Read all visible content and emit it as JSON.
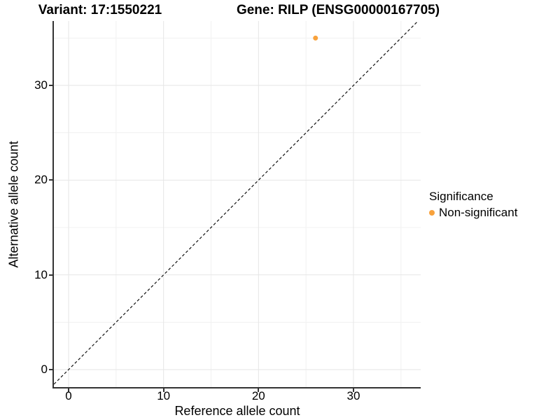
{
  "header": {
    "variant_title": "Variant: 17:1550221",
    "gene_title": "Gene: RILP (ENSG00000167705)"
  },
  "chart_data": {
    "type": "scatter",
    "xlabel": "Reference allele count",
    "ylabel": "Alternative allele count",
    "x_major_ticks": [
      0,
      10,
      20,
      30
    ],
    "y_major_ticks": [
      0,
      10,
      20,
      30
    ],
    "x_minor_gridlines": [
      5,
      15,
      25,
      35
    ],
    "y_minor_gridlines": [
      5,
      15,
      25,
      35
    ],
    "xlim": [
      -1.8,
      37.1
    ],
    "ylim": [
      -1.85,
      36.8
    ],
    "grid": true,
    "points": [
      {
        "x": 26,
        "y": 35,
        "significance": "Non-significant"
      }
    ],
    "identity_line": {
      "slope": 1,
      "intercept": 0,
      "style": "dashed"
    },
    "legend": {
      "title": "Significance",
      "position": "right",
      "entries": [
        {
          "label": "Non-significant",
          "color": "#F8A23C"
        }
      ]
    }
  },
  "colors": {
    "background": "#FFFFFF",
    "axis_line": "#333333",
    "major_grid": "#E6E6E6",
    "minor_grid": "#F1F1F1",
    "point": "#F8A23C",
    "dashed_line": "#111111",
    "text": "#000000"
  }
}
